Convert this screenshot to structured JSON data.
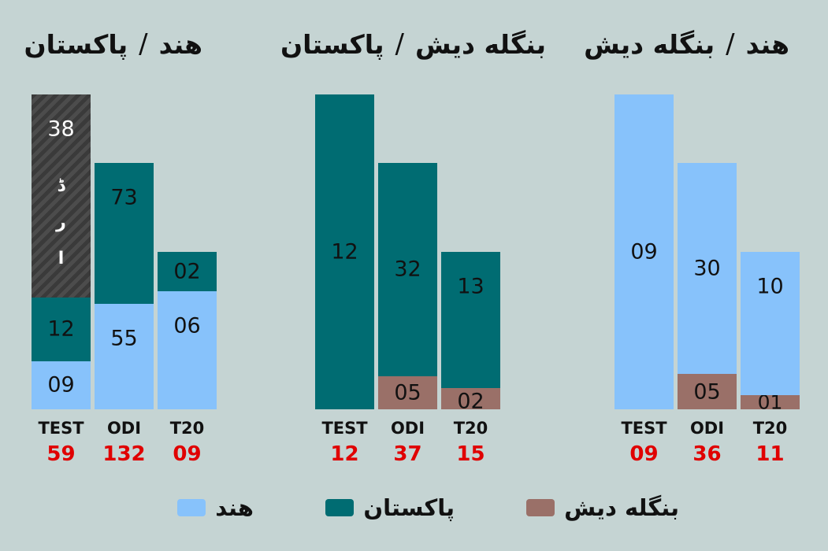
{
  "chart_data": {
    "type": "bar",
    "stacked": true,
    "colors": {
      "india": "#87c2fb",
      "pakistan": "#006c72",
      "bangladesh": "#9a7068",
      "draw": "#3f3f3f"
    },
    "legend": [
      {
        "key": "india",
        "label": "هند"
      },
      {
        "key": "pakistan",
        "label": "پاکستان"
      },
      {
        "key": "bangladesh",
        "label": "بنگله دیش"
      }
    ],
    "panels": [
      {
        "title_a": "هند",
        "title_sep": "/",
        "title_b": "پاکستان",
        "categories": [
          "TEST",
          "ODI",
          "T20"
        ],
        "totals": [
          "59",
          "132",
          "09"
        ],
        "stacks": [
          [
            {
              "key": "india",
              "value": 9,
              "label": "09"
            },
            {
              "key": "pakistan",
              "value": 12,
              "label": "12"
            },
            {
              "key": "draw",
              "value": 38,
              "label": "38",
              "note": [
                "ڈ",
                "ر",
                "ا"
              ]
            }
          ],
          [
            {
              "key": "india",
              "value": 55,
              "label": "55"
            },
            {
              "key": "pakistan",
              "value": 73,
              "label": "73"
            }
          ],
          [
            {
              "key": "india",
              "value": 6,
              "label": "06"
            },
            {
              "key": "pakistan",
              "value": 2,
              "label": "02"
            }
          ]
        ]
      },
      {
        "title_a": "بنگله دیش",
        "title_sep": "/",
        "title_b": "پاکستان",
        "categories": [
          "TEST",
          "ODI",
          "T20"
        ],
        "totals": [
          "12",
          "37",
          "15"
        ],
        "stacks": [
          [
            {
              "key": "pakistan",
              "value": 12,
              "label": "12"
            }
          ],
          [
            {
              "key": "bangladesh",
              "value": 5,
              "label": "05"
            },
            {
              "key": "pakistan",
              "value": 32,
              "label": "32"
            }
          ],
          [
            {
              "key": "bangladesh",
              "value": 2,
              "label": "02"
            },
            {
              "key": "pakistan",
              "value": 13,
              "label": "13"
            }
          ]
        ]
      },
      {
        "title_a": "هند",
        "title_sep": "/",
        "title_b": "بنگله دیش",
        "categories": [
          "TEST",
          "ODI",
          "T20"
        ],
        "totals": [
          "09",
          "36",
          "11"
        ],
        "stacks": [
          [
            {
              "key": "india",
              "value": 9,
              "label": "09"
            }
          ],
          [
            {
              "key": "bangladesh",
              "value": 5,
              "label": "05"
            },
            {
              "key": "india",
              "value": 30,
              "label": "30"
            }
          ],
          [
            {
              "key": "bangladesh",
              "value": 1,
              "label": "01"
            },
            {
              "key": "india",
              "value": 10,
              "label": "10"
            }
          ]
        ]
      }
    ]
  }
}
